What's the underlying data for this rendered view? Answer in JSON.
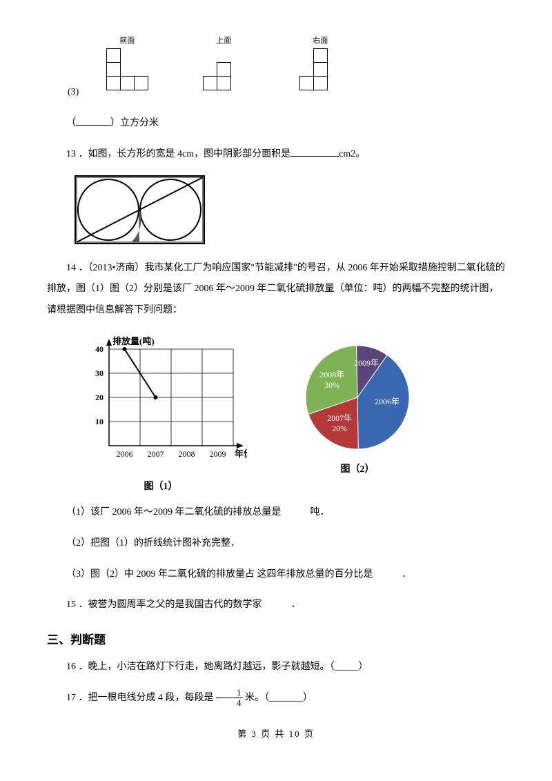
{
  "views": {
    "front": "前面",
    "top": "上面",
    "right": "右面"
  },
  "q12_suffix": "立方分米",
  "q13": {
    "label": "13 ．如图，长方形的宽是 4cm，图中阴影部分面积是",
    "unit": "cm2。"
  },
  "q14": {
    "label": "14 ．（2013•济南）我市某化工厂为响应国家\"节能减排\"的号召，从 2006 年开始采取措施控制二氧化硫的排放，图（1）图（2）分别是该厂 2006 年～2009 年二氧化硫排放量（单位：吨）的两幅不完整的统计图，请根据图中信息解答下列问题：",
    "sub1": "（1）该厂 2006 年～2009 年二氧化硫的排放总量是　　　吨．",
    "sub2": "（2）把图（1）的折线统计图补充完整．",
    "sub3": "（3）图（2）中 2009 年二氧化硫的排放量占 这四年排放总量的百分比是　　　．",
    "fig1": "图（1）",
    "fig2": "图（2）",
    "ylabel": "排放量(吨)",
    "xlabel": "年份",
    "ylim": [
      0,
      40
    ],
    "ytick_step": 10,
    "yticks": [
      "10",
      "20",
      "30",
      "40"
    ],
    "xticks": [
      "2006",
      "2007",
      "2008",
      "2009"
    ],
    "points": [
      {
        "x": 2006,
        "y": 40
      },
      {
        "x": 2007,
        "y": 20
      }
    ],
    "axis_color": "#000",
    "grid_color": "#000",
    "line_color": "#000",
    "bg": "#fff",
    "font_size": 12,
    "pie": {
      "slices": [
        {
          "label": "2006年",
          "pct": 40,
          "color": "#3a68b0"
        },
        {
          "label": "2007年",
          "pct": 20,
          "color": "#b33938",
          "sub": "20%"
        },
        {
          "label": "2008年",
          "pct": 30,
          "color": "#7fb255",
          "sub": "30%"
        },
        {
          "label": "2009年",
          "pct": 10,
          "color": "#5a447a"
        }
      ],
      "label_fontsize": 12,
      "label_color": "#fff"
    }
  },
  "q15": "15 ．被誉为圆周率之父的是我国古代的数学家　　　．",
  "h3": "三、判断题",
  "q16": "16 ．晚上，小洁在路灯下行走，她离路灯越远，影子就越短。（_____）",
  "q17": {
    "pre": "17 ．把一根电线分成 4 段，每段是",
    "num": "1",
    "den": "4",
    "post": "米。（_______）"
  },
  "footer": "第 3 页 共 10 页"
}
